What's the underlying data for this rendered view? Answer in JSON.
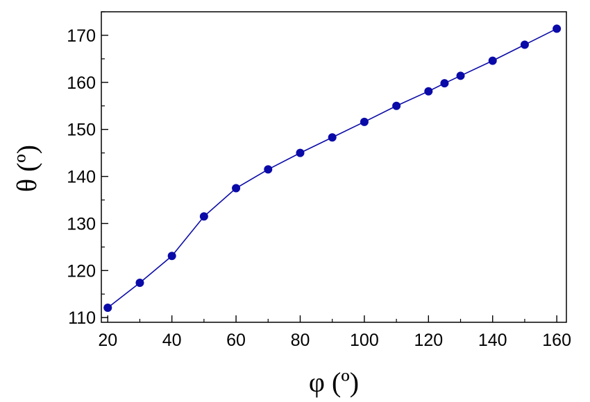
{
  "chart_data": {
    "type": "line",
    "xlabel": "φ (º)",
    "ylabel": "θ (º)",
    "xlim": [
      18,
      163
    ],
    "ylim": [
      109,
      175
    ],
    "x_ticks": [
      20,
      40,
      60,
      80,
      100,
      120,
      140,
      160
    ],
    "y_ticks": [
      110,
      120,
      130,
      140,
      150,
      160,
      170
    ],
    "x_minor_step": 10,
    "y_minor_step": 5,
    "grid": false,
    "series": [
      {
        "color": "#0a0aa8",
        "marker": "circle",
        "x": [
          20,
          30,
          40,
          50,
          60,
          70,
          80,
          90,
          100,
          110,
          120,
          125,
          130,
          140,
          150,
          160
        ],
        "y": [
          112.1,
          117.4,
          123.1,
          131.5,
          137.5,
          141.5,
          145.0,
          148.3,
          151.6,
          155.0,
          158.1,
          159.8,
          161.4,
          164.6,
          168.0,
          171.4
        ]
      }
    ]
  }
}
